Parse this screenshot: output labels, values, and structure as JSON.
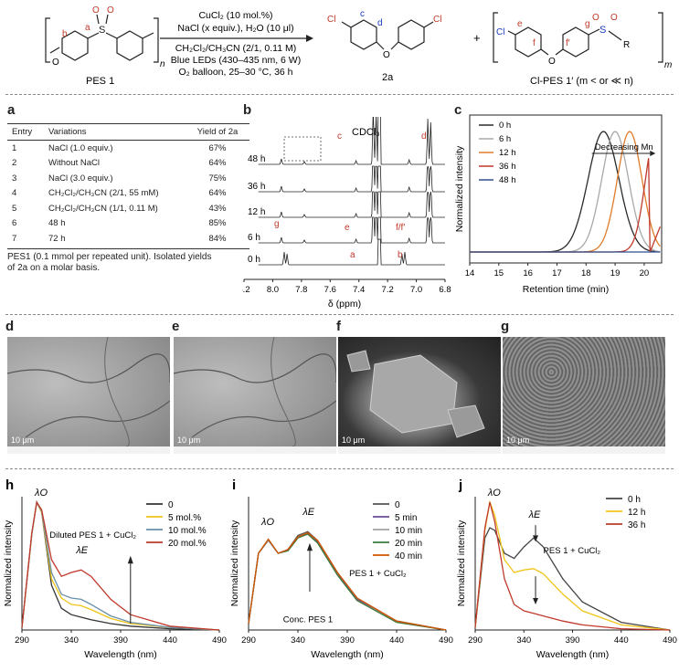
{
  "scheme": {
    "pes_label": "PES 1",
    "product_label": "2a",
    "clpes_label": "Cl-PES 1′ (m < or ≪ n)",
    "conditions": [
      "CuCl₂ (10 mol.%)",
      "NaCl (x equiv.), H₂O (10 μl)",
      "CH₂Cl₂/CH₃CN (2/1, 0.11 M)",
      "Blue LEDs (430–435 nm, 6 W)",
      "O₂ balloon, 25–30 °C, 36 h"
    ],
    "atom_labels": [
      "a",
      "b",
      "c",
      "d",
      "e",
      "f",
      "f′",
      "g"
    ],
    "subscripts": {
      "n": "n",
      "m": "m"
    },
    "plus": "+",
    "cl": "Cl",
    "o": "O",
    "s": "S",
    "r": "R"
  },
  "panel_a": {
    "label": "a",
    "headers": [
      "Entry",
      "Variations",
      "Yield of 2a"
    ],
    "rows": [
      [
        "1",
        "NaCl (1.0 equiv.)",
        "67%"
      ],
      [
        "2",
        "Without NaCl",
        "64%"
      ],
      [
        "3",
        "NaCl (3.0 equiv.)",
        "75%"
      ],
      [
        "4",
        "CH₂Cl₂/CH₃CN (2/1, 55 mM)",
        "64%"
      ],
      [
        "5",
        "CH₂Cl₂/CH₃CN (1/1, 0.11 M)",
        "43%"
      ],
      [
        "6",
        "48 h",
        "85%"
      ],
      [
        "7",
        "72 h",
        "84%"
      ]
    ],
    "footnote_1": "PES1 (0.1 mmol per repeated unit). Isolated yields",
    "footnote_2": "of 2a on a molar basis."
  },
  "panel_b": {
    "label": "b",
    "solvent": "CDCl₃",
    "traces": [
      "48 h",
      "36 h",
      "12 h",
      "6 h",
      "0 h"
    ],
    "peak_labels": [
      "c",
      "d",
      "g",
      "e",
      "f/f′",
      "a",
      "b"
    ],
    "ticks": [
      "8.2",
      "8.0",
      "7.8",
      "7.6",
      "7.4",
      "7.2",
      "7.0",
      "6.8"
    ],
    "xlabel": "δ (ppm)"
  },
  "panel_c": {
    "label": "c",
    "ylabel": "Normalized intensity",
    "xlabel": "Retention time (min)",
    "ticks": [
      "14",
      "15",
      "16",
      "17",
      "18",
      "19",
      "20"
    ],
    "annotation": "Decreasing Mn",
    "legend": [
      {
        "name": "0 h",
        "color": "#2b2b2b"
      },
      {
        "name": "6 h",
        "color": "#a8a8a8"
      },
      {
        "name": "12 h",
        "color": "#e07b2a"
      },
      {
        "name": "36 h",
        "color": "#c0392b"
      },
      {
        "name": "48 h",
        "color": "#2f4f8f"
      }
    ]
  },
  "panel_sem": [
    {
      "label": "d",
      "scale": "10 μm",
      "kind": "smooth"
    },
    {
      "label": "e",
      "scale": "10 μm",
      "kind": "smooth"
    },
    {
      "label": "f",
      "scale": "10 μm",
      "kind": "chunk"
    },
    {
      "label": "g",
      "scale": "10 μm",
      "kind": "porous"
    }
  ],
  "chart_data": [
    {
      "type": "line",
      "title": "h",
      "xlabel": "Wavelength (nm)",
      "ylabel": "Normalized intensity",
      "xlim": [
        290,
        490
      ],
      "xticks": [
        290,
        340,
        390,
        440,
        490
      ],
      "annotation": "Diluted PES 1 + CuCl₂",
      "peak_labels": [
        "λO",
        "λE"
      ],
      "series": [
        {
          "name": "0",
          "color": "#333333",
          "points": [
            [
              290,
              0.02
            ],
            [
              300,
              0.75
            ],
            [
              305,
              1.0
            ],
            [
              310,
              0.92
            ],
            [
              320,
              0.35
            ],
            [
              330,
              0.17
            ],
            [
              340,
              0.12
            ],
            [
              350,
              0.1
            ],
            [
              360,
              0.08
            ],
            [
              380,
              0.05
            ],
            [
              400,
              0.03
            ],
            [
              440,
              0.01
            ],
            [
              490,
              0.0
            ]
          ]
        },
        {
          "name": "5 mol.%",
          "color": "#f0c419",
          "points": [
            [
              290,
              0.02
            ],
            [
              300,
              0.75
            ],
            [
              305,
              1.0
            ],
            [
              310,
              0.92
            ],
            [
              320,
              0.4
            ],
            [
              330,
              0.25
            ],
            [
              340,
              0.2
            ],
            [
              350,
              0.19
            ],
            [
              360,
              0.16
            ],
            [
              380,
              0.09
            ],
            [
              400,
              0.05
            ],
            [
              440,
              0.02
            ],
            [
              490,
              0.0
            ]
          ]
        },
        {
          "name": "10 mol.%",
          "color": "#6a8fa8",
          "points": [
            [
              290,
              0.02
            ],
            [
              300,
              0.75
            ],
            [
              305,
              1.0
            ],
            [
              310,
              0.93
            ],
            [
              320,
              0.45
            ],
            [
              330,
              0.28
            ],
            [
              340,
              0.25
            ],
            [
              350,
              0.24
            ],
            [
              360,
              0.2
            ],
            [
              380,
              0.11
            ],
            [
              400,
              0.06
            ],
            [
              440,
              0.02
            ],
            [
              490,
              0.0
            ]
          ]
        },
        {
          "name": "20 mol.%",
          "color": "#c0392b",
          "points": [
            [
              290,
              0.02
            ],
            [
              300,
              0.76
            ],
            [
              305,
              1.0
            ],
            [
              310,
              0.94
            ],
            [
              320,
              0.55
            ],
            [
              330,
              0.42
            ],
            [
              340,
              0.45
            ],
            [
              350,
              0.47
            ],
            [
              360,
              0.42
            ],
            [
              380,
              0.24
            ],
            [
              400,
              0.12
            ],
            [
              440,
              0.03
            ],
            [
              490,
              0.0
            ]
          ]
        }
      ]
    },
    {
      "type": "line",
      "title": "i",
      "xlabel": "Wavelength (nm)",
      "ylabel": "Normalized intensity",
      "xlim": [
        290,
        490
      ],
      "xticks": [
        290,
        340,
        390,
        440,
        490
      ],
      "annotation": "PES 1 + CuCl₂",
      "annotation2": "Conc. PES 1",
      "peak_labels": [
        "λO",
        "λE"
      ],
      "series": [
        {
          "name": "0",
          "color": "#555555",
          "points": [
            [
              290,
              0.05
            ],
            [
              300,
              0.6
            ],
            [
              310,
              0.7
            ],
            [
              320,
              0.6
            ],
            [
              330,
              0.63
            ],
            [
              340,
              0.74
            ],
            [
              350,
              0.77
            ],
            [
              360,
              0.7
            ],
            [
              380,
              0.45
            ],
            [
              400,
              0.25
            ],
            [
              440,
              0.07
            ],
            [
              490,
              0.0
            ]
          ]
        },
        {
          "name": "5 min",
          "color": "#6a4c93",
          "points": [
            [
              290,
              0.05
            ],
            [
              300,
              0.6
            ],
            [
              310,
              0.7
            ],
            [
              320,
              0.6
            ],
            [
              330,
              0.63
            ],
            [
              340,
              0.73
            ],
            [
              350,
              0.76
            ],
            [
              360,
              0.69
            ],
            [
              380,
              0.44
            ],
            [
              400,
              0.24
            ],
            [
              440,
              0.07
            ],
            [
              490,
              0.0
            ]
          ]
        },
        {
          "name": "10 min",
          "color": "#a3a3a3",
          "points": [
            [
              290,
              0.05
            ],
            [
              300,
              0.6
            ],
            [
              310,
              0.7
            ],
            [
              320,
              0.6
            ],
            [
              330,
              0.62
            ],
            [
              340,
              0.72
            ],
            [
              350,
              0.75
            ],
            [
              360,
              0.68
            ],
            [
              380,
              0.43
            ],
            [
              400,
              0.23
            ],
            [
              440,
              0.07
            ],
            [
              490,
              0.0
            ]
          ]
        },
        {
          "name": "20 min",
          "color": "#3e7a3e",
          "points": [
            [
              290,
              0.05
            ],
            [
              300,
              0.6
            ],
            [
              310,
              0.71
            ],
            [
              320,
              0.6
            ],
            [
              330,
              0.62
            ],
            [
              340,
              0.72
            ],
            [
              350,
              0.75
            ],
            [
              360,
              0.68
            ],
            [
              380,
              0.43
            ],
            [
              400,
              0.23
            ],
            [
              440,
              0.06
            ],
            [
              490,
              0.0
            ]
          ]
        },
        {
          "name": "40 min",
          "color": "#d35400",
          "points": [
            [
              290,
              0.05
            ],
            [
              300,
              0.6
            ],
            [
              310,
              0.71
            ],
            [
              320,
              0.6
            ],
            [
              330,
              0.63
            ],
            [
              340,
              0.73
            ],
            [
              350,
              0.76
            ],
            [
              360,
              0.7
            ],
            [
              380,
              0.45
            ],
            [
              400,
              0.25
            ],
            [
              440,
              0.07
            ],
            [
              490,
              0.0
            ]
          ]
        }
      ]
    },
    {
      "type": "line",
      "title": "j",
      "xlabel": "Wavelength (nm)",
      "ylabel": "Normalized intensity",
      "xlim": [
        290,
        490
      ],
      "xticks": [
        290,
        340,
        390,
        440,
        490
      ],
      "annotation": "PES 1 + CuCl₂",
      "peak_labels": [
        "λO",
        "λE"
      ],
      "series": [
        {
          "name": "0 h",
          "color": "#444444",
          "points": [
            [
              290,
              0.02
            ],
            [
              300,
              0.72
            ],
            [
              305,
              0.8
            ],
            [
              310,
              0.78
            ],
            [
              320,
              0.6
            ],
            [
              330,
              0.56
            ],
            [
              340,
              0.65
            ],
            [
              350,
              0.72
            ],
            [
              360,
              0.65
            ],
            [
              380,
              0.4
            ],
            [
              400,
              0.22
            ],
            [
              440,
              0.06
            ],
            [
              490,
              0.0
            ]
          ]
        },
        {
          "name": "12 h",
          "color": "#f0c419",
          "points": [
            [
              290,
              0.02
            ],
            [
              300,
              0.78
            ],
            [
              305,
              1.0
            ],
            [
              310,
              0.9
            ],
            [
              320,
              0.55
            ],
            [
              330,
              0.45
            ],
            [
              340,
              0.47
            ],
            [
              350,
              0.48
            ],
            [
              360,
              0.44
            ],
            [
              380,
              0.28
            ],
            [
              400,
              0.15
            ],
            [
              440,
              0.04
            ],
            [
              490,
              0.0
            ]
          ]
        },
        {
          "name": "36 h",
          "color": "#c0392b",
          "points": [
            [
              290,
              0.02
            ],
            [
              300,
              0.8
            ],
            [
              305,
              1.0
            ],
            [
              310,
              0.85
            ],
            [
              320,
              0.4
            ],
            [
              330,
              0.2
            ],
            [
              340,
              0.15
            ],
            [
              350,
              0.13
            ],
            [
              360,
              0.11
            ],
            [
              380,
              0.07
            ],
            [
              400,
              0.04
            ],
            [
              440,
              0.01
            ],
            [
              490,
              0.0
            ]
          ]
        }
      ]
    }
  ]
}
